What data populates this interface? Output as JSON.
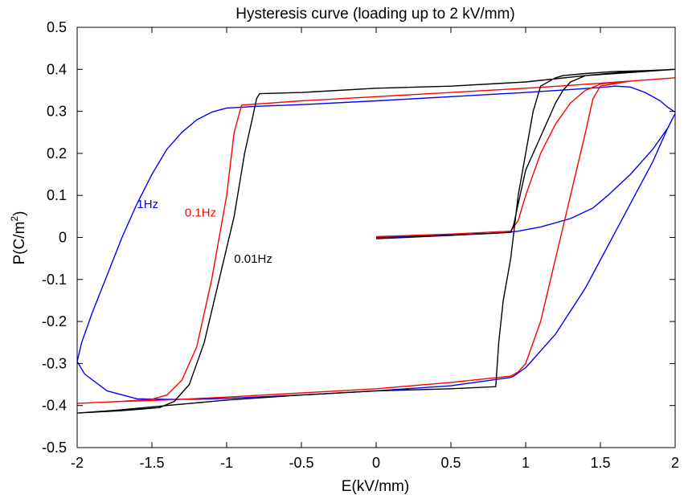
{
  "chart_data": {
    "type": "line",
    "title": "Hysteresis curve (loading up to 2 kV/mm)",
    "xlabel": "E(kV/mm)",
    "ylabel_main": "P(C/m",
    "ylabel_sup": "2",
    "ylabel_close": ")",
    "xlim": [
      -2,
      2
    ],
    "ylim": [
      -0.5,
      0.5
    ],
    "x_ticks": [
      -2,
      -1.5,
      -1,
      -0.5,
      0,
      0.5,
      1,
      1.5,
      2
    ],
    "x_tick_labels": [
      "-2",
      "-1.5",
      "-1",
      "-0.5",
      "0",
      "0.5",
      "1",
      "1.5",
      "2"
    ],
    "y_ticks": [
      -0.5,
      -0.4,
      -0.3,
      -0.2,
      -0.1,
      0,
      0.1,
      0.2,
      0.3,
      0.4,
      0.5
    ],
    "y_tick_labels": [
      "-0.5",
      "-0.4",
      "-0.3",
      "-0.2",
      "-0.1",
      "0",
      "0.1",
      "0.2",
      "0.3",
      "0.4",
      "0.5"
    ],
    "grid": false,
    "annotations": [
      {
        "text": "1Hz",
        "x": -1.6,
        "y": 0.07,
        "color": "#0000ff"
      },
      {
        "text": "0.1Hz",
        "x": -1.28,
        "y": 0.05,
        "color": "#ff0000"
      },
      {
        "text": "0.01Hz",
        "x": -0.95,
        "y": -0.06,
        "color": "#000000"
      }
    ],
    "series": [
      {
        "color": "#0000ff",
        "x": [
          0,
          0.4,
          0.8,
          0.88,
          0.95,
          1.1,
          1.3,
          1.45,
          1.55,
          1.7,
          1.85,
          1.95,
          2.0,
          1.95,
          1.85,
          1.7,
          1.55,
          1.4,
          1.2,
          1.0,
          0.92,
          0.9,
          0.5,
          0,
          -0.5,
          -1.0,
          -1.2,
          -1.4,
          -1.6,
          -1.8,
          -1.95,
          -2.0,
          -1.97,
          -1.9,
          -1.8,
          -1.7,
          -1.6,
          -1.5,
          -1.4,
          -1.3,
          -1.2,
          -1.1,
          -1.0,
          -0.9,
          -0.8,
          -0.5,
          0,
          0.5,
          1.0,
          1.3,
          1.5,
          1.6,
          1.7,
          1.8,
          1.9,
          1.95,
          2.0
        ],
        "y": [
          0,
          0.005,
          0.01,
          0.012,
          0.015,
          0.025,
          0.045,
          0.07,
          0.1,
          0.15,
          0.21,
          0.26,
          0.295,
          0.26,
          0.18,
          0.08,
          -0.02,
          -0.12,
          -0.23,
          -0.31,
          -0.33,
          -0.333,
          -0.353,
          -0.365,
          -0.375,
          -0.383,
          -0.385,
          -0.385,
          -0.384,
          -0.365,
          -0.325,
          -0.295,
          -0.25,
          -0.18,
          -0.09,
          0.0,
          0.08,
          0.15,
          0.21,
          0.25,
          0.28,
          0.298,
          0.308,
          0.31,
          0.312,
          0.316,
          0.325,
          0.335,
          0.345,
          0.352,
          0.357,
          0.36,
          0.358,
          0.345,
          0.325,
          0.31,
          0.298
        ]
      },
      {
        "color": "#ff0000",
        "x": [
          0,
          0.5,
          0.9,
          0.95,
          1.0,
          1.1,
          1.2,
          1.3,
          1.4,
          1.5,
          1.7,
          2.0,
          1.7,
          1.5,
          1.45,
          1.4,
          1.3,
          1.2,
          1.1,
          1.0,
          0.95,
          0.9,
          0.5,
          0,
          -0.5,
          -1.0,
          -1.3,
          -1.5,
          -1.7,
          -2.0,
          -1.7,
          -1.5,
          -1.4,
          -1.3,
          -1.2,
          -1.1,
          -1.0,
          -0.95,
          -0.9,
          -0.5,
          0,
          0.5,
          1.0,
          1.3,
          1.5,
          1.7,
          2.0
        ],
        "y": [
          0.002,
          0.008,
          0.015,
          0.04,
          0.1,
          0.2,
          0.27,
          0.32,
          0.35,
          0.365,
          0.372,
          0.38,
          0.372,
          0.36,
          0.33,
          0.25,
          0.1,
          -0.05,
          -0.2,
          -0.3,
          -0.32,
          -0.33,
          -0.345,
          -0.36,
          -0.37,
          -0.38,
          -0.385,
          -0.388,
          -0.39,
          -0.395,
          -0.39,
          -0.385,
          -0.375,
          -0.34,
          -0.26,
          -0.1,
          0.1,
          0.25,
          0.315,
          0.325,
          0.335,
          0.345,
          0.355,
          0.362,
          0.367,
          0.372,
          0.38
        ]
      },
      {
        "color": "#000000",
        "x": [
          0,
          0.5,
          0.9,
          0.92,
          0.95,
          1.0,
          1.05,
          1.1,
          1.15,
          1.2,
          1.25,
          1.3,
          1.4,
          1.6,
          1.8,
          2.0,
          1.8,
          1.6,
          1.4,
          1.25,
          1.2,
          1.1,
          1.05,
          1.0,
          0.95,
          0.9,
          0.85,
          0.82,
          0.8,
          0.5,
          0,
          -0.5,
          -1.0,
          -1.4,
          -1.7,
          -2.0,
          -1.7,
          -1.45,
          -1.35,
          -1.25,
          -1.15,
          -1.05,
          -0.95,
          -0.88,
          -0.83,
          -0.8,
          -0.78,
          -0.5,
          0,
          0.5,
          1.0,
          1.4,
          1.7,
          2.0
        ],
        "y": [
          -0.003,
          0.005,
          0.012,
          0.03,
          0.08,
          0.16,
          0.2,
          0.24,
          0.28,
          0.32,
          0.35,
          0.37,
          0.385,
          0.39,
          0.395,
          0.4,
          0.397,
          0.395,
          0.39,
          0.385,
          0.38,
          0.36,
          0.3,
          0.2,
          0.1,
          -0.05,
          -0.15,
          -0.25,
          -0.355,
          -0.36,
          -0.365,
          -0.375,
          -0.387,
          -0.4,
          -0.41,
          -0.418,
          -0.412,
          -0.405,
          -0.39,
          -0.35,
          -0.25,
          -0.1,
          0.05,
          0.2,
          0.28,
          0.33,
          0.342,
          0.345,
          0.355,
          0.36,
          0.37,
          0.385,
          0.395,
          0.4
        ]
      }
    ]
  }
}
